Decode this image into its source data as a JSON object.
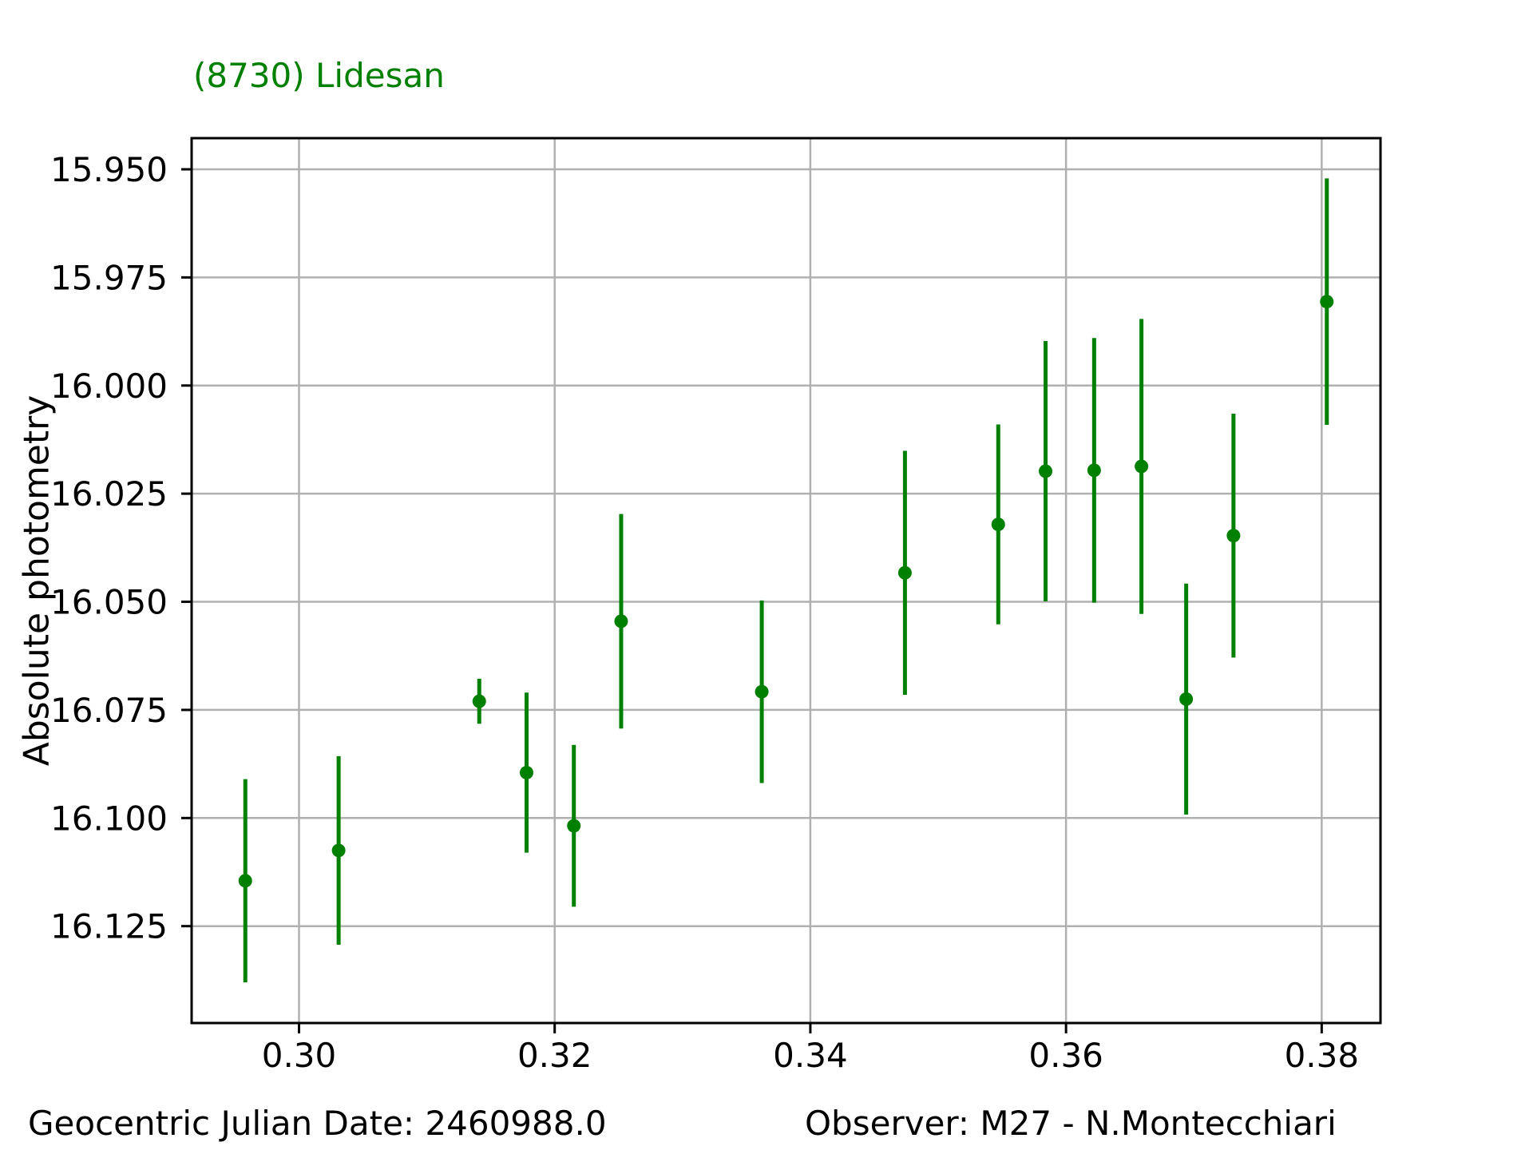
{
  "title": {
    "text": "(8730) Lidesan",
    "color": "#008000"
  },
  "y_axis_label": "Absolute photometry",
  "footer": {
    "left": "Geocentric Julian Date: 2460988.0",
    "right": "Observer: M27 - N.Montecchiari"
  },
  "style": {
    "background": "#ffffff",
    "data_color": "#008000",
    "grid_color": "#b0b0b0",
    "axis_color": "#000000",
    "text_color": "#000000"
  },
  "chart_data": {
    "type": "scatter",
    "title": "(8730) Lidesan",
    "xlabel": "",
    "ylabel": "Absolute photometry",
    "grid": true,
    "legend": "none",
    "x_axis": {
      "tick_labels": [
        "0.30",
        "0.32",
        "0.34",
        "0.36",
        "0.38"
      ],
      "tick_values": [
        0.3,
        0.32,
        0.34,
        0.36,
        0.38
      ],
      "lim": [
        0.2916,
        0.3846
      ]
    },
    "y_axis": {
      "tick_labels": [
        "15.950",
        "15.975",
        "16.000",
        "16.025",
        "16.050",
        "16.075",
        "16.100",
        "16.125"
      ],
      "tick_values": [
        15.95,
        15.975,
        16.0,
        16.025,
        16.05,
        16.075,
        16.1,
        16.125
      ],
      "lim_top": 15.9428,
      "lim_bottom": 16.1474,
      "inverted": true
    },
    "series": [
      {
        "name": "(8730) Lidesan absolute photometry",
        "marker": "circle",
        "color": "#008000",
        "points": [
          {
            "x": 0.2958,
            "y": 16.1145,
            "yerr": 0.0235
          },
          {
            "x": 0.3031,
            "y": 16.1075,
            "yerr": 0.0218
          },
          {
            "x": 0.3141,
            "y": 16.073,
            "yerr": 0.0052
          },
          {
            "x": 0.3178,
            "y": 16.0895,
            "yerr": 0.0185
          },
          {
            "x": 0.3215,
            "y": 16.1018,
            "yerr": 0.0187
          },
          {
            "x": 0.3252,
            "y": 16.0545,
            "yerr": 0.0248
          },
          {
            "x": 0.3362,
            "y": 16.0708,
            "yerr": 0.0211
          },
          {
            "x": 0.3474,
            "y": 16.0433,
            "yerr": 0.0282
          },
          {
            "x": 0.3547,
            "y": 16.0321,
            "yerr": 0.0231
          },
          {
            "x": 0.3584,
            "y": 16.0198,
            "yerr": 0.0301
          },
          {
            "x": 0.3622,
            "y": 16.0196,
            "yerr": 0.0306
          },
          {
            "x": 0.3659,
            "y": 16.0187,
            "yerr": 0.0341
          },
          {
            "x": 0.3694,
            "y": 16.0725,
            "yerr": 0.0267
          },
          {
            "x": 0.3731,
            "y": 16.0347,
            "yerr": 0.0282
          },
          {
            "x": 0.3804,
            "y": 15.9806,
            "yerr": 0.0285
          }
        ]
      }
    ]
  }
}
